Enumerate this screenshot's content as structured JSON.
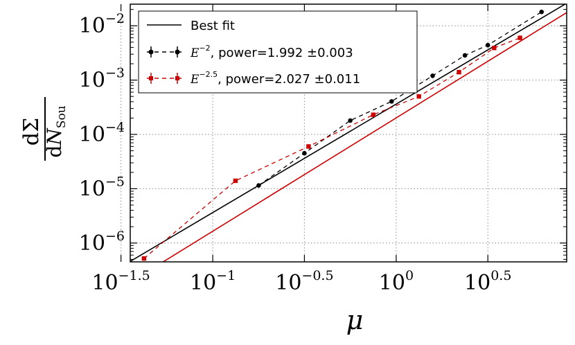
{
  "chart_data": {
    "type": "line",
    "title": "",
    "x_scale": "log",
    "y_scale": "log",
    "xlabel": "μ",
    "ylabel": {
      "numerator": "dΣ",
      "denominator_main": "dN",
      "denominator_sub": "Sou"
    },
    "xlim": [
      0.0355,
      8.5
    ],
    "ylim": [
      4.5e-07,
      0.025
    ],
    "grid": true,
    "legend_position": "top-left",
    "x_ticks": [
      {
        "value": 0.0316,
        "base": "10",
        "exp": "−1.5"
      },
      {
        "value": 0.1,
        "base": "10",
        "exp": "−1"
      },
      {
        "value": 0.316,
        "base": "10",
        "exp": "−0.5"
      },
      {
        "value": 1,
        "base": "10",
        "exp": "0"
      },
      {
        "value": 3.16,
        "base": "10",
        "exp": "0.5"
      }
    ],
    "y_ticks": [
      {
        "value": 1e-06,
        "base": "10",
        "exp": "−6"
      },
      {
        "value": 1e-05,
        "base": "10",
        "exp": "−5"
      },
      {
        "value": 0.0001,
        "base": "10",
        "exp": "−4"
      },
      {
        "value": 0.001,
        "base": "10",
        "exp": "−3"
      },
      {
        "value": 0.01,
        "base": "10",
        "exp": "−2"
      }
    ],
    "series": [
      {
        "name": "Best fit",
        "kind": "fit",
        "color": "#000000",
        "x": [
          0.0355,
          8.5
        ],
        "y": [
          4.6e-07,
          0.026
        ]
      },
      {
        "name_prefix": "E",
        "name_sup": "−2",
        "name_suffix": ", power=1.992 ±0.003",
        "kind": "data",
        "marker": "circle",
        "color": "#000000",
        "x": [
          0.178,
          0.316,
          0.562,
          0.944,
          1.58,
          2.37,
          3.16,
          6.2
        ],
        "y": [
          1.15e-05,
          4.5e-05,
          0.00018,
          0.000405,
          0.0012,
          0.00285,
          0.0044,
          0.018
        ]
      },
      {
        "name": "Best fit",
        "kind": "fit",
        "color": "#cc0000",
        "x": [
          0.0355,
          8.5
        ],
        "y": [
          1.9e-07,
          0.0175
        ]
      },
      {
        "name_prefix": "E",
        "name_sup": "−2.5",
        "name_suffix": ", power=2.027 ±0.011",
        "kind": "data",
        "marker": "square",
        "color": "#cc0000",
        "x": [
          0.0422,
          0.133,
          0.333,
          0.75,
          1.33,
          2.2,
          3.42,
          4.73
        ],
        "y": [
          5.2e-07,
          1.4e-05,
          6e-05,
          0.00023,
          0.0005,
          0.0014,
          0.0039,
          0.006
        ]
      }
    ]
  }
}
